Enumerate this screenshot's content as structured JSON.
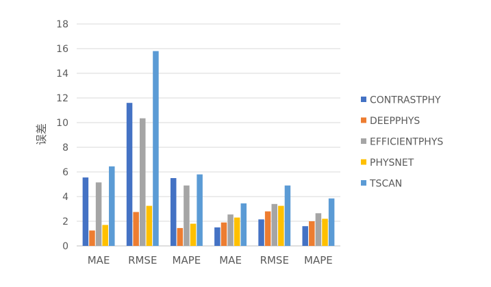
{
  "chart_data": {
    "type": "bar",
    "title": "",
    "xlabel": "",
    "ylabel": "误差",
    "ylim": [
      0,
      18
    ],
    "yticks": [
      0,
      2,
      4,
      6,
      8,
      10,
      12,
      14,
      16,
      18
    ],
    "grid": true,
    "legend_position": "right",
    "categories": [
      "MAE",
      "RMSE",
      "MAPE",
      "MAE",
      "RMSE",
      "MAPE"
    ],
    "series": [
      {
        "name": "CONTRASTPHY",
        "color": "#4472C4",
        "values": [
          5.55,
          11.6,
          5.5,
          1.5,
          2.15,
          1.6
        ]
      },
      {
        "name": "DEEPPHYS",
        "color": "#ED7D31",
        "values": [
          1.25,
          2.75,
          1.45,
          1.9,
          2.8,
          2.0
        ]
      },
      {
        "name": "EFFICIENTPHYS",
        "color": "#A5A5A5",
        "values": [
          5.15,
          10.35,
          4.9,
          2.55,
          3.4,
          2.65
        ]
      },
      {
        "name": "PHYSNET",
        "color": "#FFC000",
        "values": [
          1.7,
          3.25,
          1.8,
          2.3,
          3.25,
          2.2
        ]
      },
      {
        "name": "TSCAN",
        "color": "#5B9BD5",
        "values": [
          6.45,
          15.8,
          5.8,
          3.45,
          4.9,
          3.85
        ]
      }
    ]
  }
}
